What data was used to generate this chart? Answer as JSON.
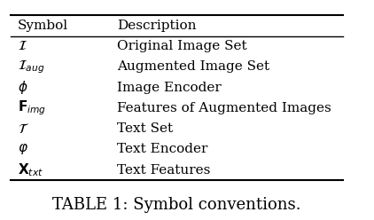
{
  "title": "TABLE 1: Symbol conventions.",
  "header": [
    "Symbol",
    "Description"
  ],
  "rows": [
    [
      "$\\mathcal{I}$",
      "Original Image Set"
    ],
    [
      "$\\mathcal{I}_{aug}$",
      "Augmented Image Set"
    ],
    [
      "$\\phi$",
      "Image Encoder"
    ],
    [
      "$\\mathbf{F}_{img}$",
      "Features of Augmented Images"
    ],
    [
      "$\\mathcal{T}$",
      "Text Set"
    ],
    [
      "$\\varphi$",
      "Text Encoder"
    ],
    [
      "$\\mathbf{X}_{txt}$",
      "Text Features"
    ]
  ],
  "bg_color": "#ffffff",
  "text_color": "#000000",
  "title_fontsize": 13,
  "header_fontsize": 11,
  "row_fontsize": 11
}
